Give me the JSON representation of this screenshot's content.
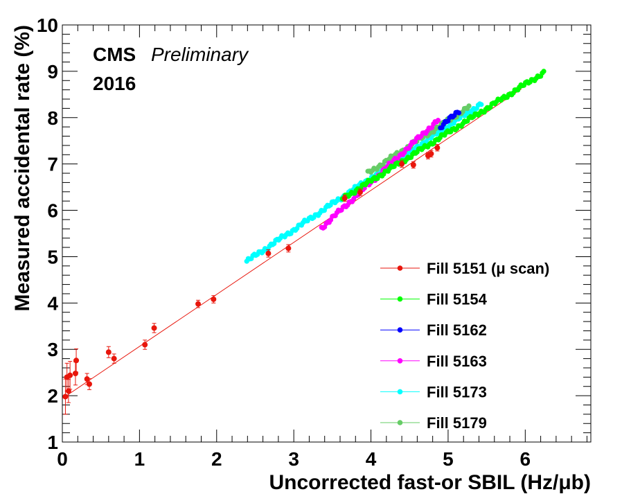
{
  "chart_data": {
    "type": "scatter",
    "annotations": {
      "experiment": "CMS",
      "status": "Preliminary",
      "year": "2016"
    },
    "xlabel": "Uncorrected fast-or SBIL (Hz/μb)",
    "ylabel": "Measured accidental rate (%)",
    "xlim": [
      0,
      6.85
    ],
    "ylim": [
      1,
      10
    ],
    "x_ticks": [
      0,
      1,
      2,
      3,
      4,
      5,
      6
    ],
    "y_ticks": [
      1,
      2,
      3,
      4,
      5,
      6,
      7,
      8,
      9,
      10
    ],
    "legend_position": "bottom-right",
    "fit_line": {
      "series": "Fill 5151 (μ scan)",
      "color": "#e8160c",
      "x": [
        0,
        5.95
      ],
      "y": [
        1.94,
        8.62
      ]
    },
    "series": [
      {
        "name": "Fill 5151 (μ scan)",
        "color": "#e8160c",
        "points": [
          {
            "x": 0.04,
            "y": 1.98,
            "err": 0.38
          },
          {
            "x": 0.06,
            "y": 2.4,
            "err": 0.3
          },
          {
            "x": 0.08,
            "y": 2.1,
            "err": 0.25
          },
          {
            "x": 0.1,
            "y": 2.44,
            "err": 0.3
          },
          {
            "x": 0.17,
            "y": 2.48,
            "err": 0.25
          },
          {
            "x": 0.18,
            "y": 2.76,
            "err": 0.25
          },
          {
            "x": 0.32,
            "y": 2.36,
            "err": 0.12
          },
          {
            "x": 0.35,
            "y": 2.25,
            "err": 0.12
          },
          {
            "x": 0.6,
            "y": 2.94,
            "err": 0.12
          },
          {
            "x": 0.67,
            "y": 2.8,
            "err": 0.1
          },
          {
            "x": 1.07,
            "y": 3.1,
            "err": 0.1
          },
          {
            "x": 1.19,
            "y": 3.46,
            "err": 0.1
          },
          {
            "x": 1.76,
            "y": 3.98,
            "err": 0.08
          },
          {
            "x": 1.96,
            "y": 4.08,
            "err": 0.08
          },
          {
            "x": 2.67,
            "y": 5.07,
            "err": 0.08
          },
          {
            "x": 2.93,
            "y": 5.18,
            "err": 0.08
          },
          {
            "x": 3.66,
            "y": 6.26,
            "err": 0.07
          },
          {
            "x": 3.86,
            "y": 6.39,
            "err": 0.07
          },
          {
            "x": 4.4,
            "y": 7.0,
            "err": 0.07
          },
          {
            "x": 4.55,
            "y": 6.98,
            "err": 0.07
          },
          {
            "x": 4.74,
            "y": 7.18,
            "err": 0.07
          },
          {
            "x": 4.78,
            "y": 7.22,
            "err": 0.07
          },
          {
            "x": 4.86,
            "y": 7.35,
            "err": 0.07
          }
        ]
      },
      {
        "name": "Fill 5154",
        "color": "#00ff00",
        "start": [
          3.63,
          6.25
        ],
        "end": [
          6.24,
          8.97
        ]
      },
      {
        "name": "Fill 5162",
        "color": "#0000ff",
        "start": [
          4.9,
          7.78
        ],
        "end": [
          5.14,
          8.15
        ]
      },
      {
        "name": "Fill 5163",
        "color": "#ff00ff",
        "start": [
          3.36,
          5.62
        ],
        "end": [
          4.87,
          7.95
        ]
      },
      {
        "name": "Fill 5173",
        "color": "#00ffff",
        "start": [
          2.39,
          4.9
        ],
        "end": [
          5.43,
          8.3
        ]
      },
      {
        "name": "Fill 5179",
        "color": "#66cc66",
        "start": [
          3.96,
          6.8
        ],
        "end": [
          5.27,
          8.23
        ]
      }
    ]
  }
}
